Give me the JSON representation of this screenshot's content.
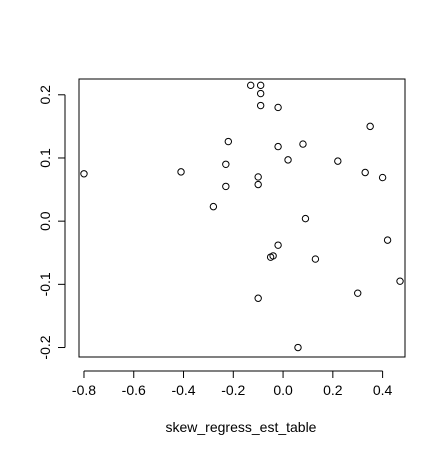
{
  "chart_data": {
    "type": "scatter",
    "title": "",
    "xlabel": "skew_regress_est_table",
    "ylabel": "",
    "xlim": [
      -0.82,
      0.49
    ],
    "ylim": [
      -0.215,
      0.225
    ],
    "x_ticks": [
      -0.8,
      -0.6,
      -0.4,
      -0.2,
      0.0,
      0.2,
      0.4
    ],
    "x_tick_labels": [
      "-0.8",
      "-0.6",
      "-0.4",
      "-0.2",
      "0.0",
      "0.2",
      "0.4"
    ],
    "y_ticks": [
      -0.2,
      -0.1,
      0.0,
      0.1,
      0.2
    ],
    "y_tick_labels": [
      "-0.2",
      "-0.1",
      "0.0",
      "0.1",
      "0.2"
    ],
    "grid": false,
    "legend": "none",
    "marker": "open-circle",
    "colors": {
      "marker_stroke": "#000000",
      "axis": "#000000",
      "background": "#ffffff"
    },
    "x": [
      -0.13,
      -0.09,
      -0.09,
      -0.09,
      -0.02,
      0.08,
      -0.02,
      -0.22,
      0.35,
      0.02,
      0.22,
      -0.23,
      -0.8,
      -0.41,
      0.33,
      0.4,
      -0.1,
      -0.1,
      -0.23,
      -0.28,
      0.09,
      0.42,
      -0.02,
      -0.04,
      -0.05,
      0.13,
      0.3,
      0.47,
      -0.1,
      0.06
    ],
    "y": [
      0.215,
      0.215,
      0.202,
      0.183,
      0.18,
      0.122,
      0.118,
      0.126,
      0.15,
      0.097,
      0.095,
      0.09,
      0.075,
      0.078,
      0.077,
      0.069,
      0.07,
      0.058,
      0.055,
      0.023,
      0.004,
      -0.03,
      -0.038,
      -0.055,
      -0.057,
      -0.06,
      -0.114,
      -0.095,
      -0.122,
      -0.2
    ]
  }
}
